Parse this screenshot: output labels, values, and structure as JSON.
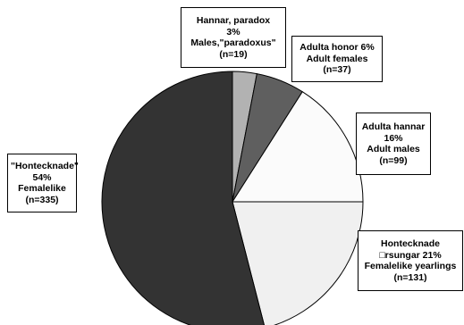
{
  "chart_data": {
    "type": "pie",
    "title": "",
    "slices": [
      {
        "value": 3,
        "color": "#b2b2b2",
        "lines": [
          "Hannar, paradox",
          "3%",
          "Males,\"paradoxus\"",
          "(n=19)"
        ]
      },
      {
        "value": 6,
        "color": "#5f5f5f",
        "lines": [
          "Adulta honor 6%",
          "Adult females",
          "(n=37)"
        ]
      },
      {
        "value": 16,
        "color": "#fbfbfb",
        "lines": [
          "Adulta hannar",
          "16%",
          "Adult males",
          "(n=99)"
        ]
      },
      {
        "value": 21,
        "color": "#f0f0f0",
        "lines": [
          "Hontecknade",
          "□rsungar 21%",
          "Femalelike yearlings",
          "(n=131)"
        ]
      },
      {
        "value": 54,
        "color": "#333333",
        "lines": [
          "\"Hontecknade\"",
          "54%",
          "Femalelike",
          "(n=335)"
        ]
      }
    ]
  }
}
